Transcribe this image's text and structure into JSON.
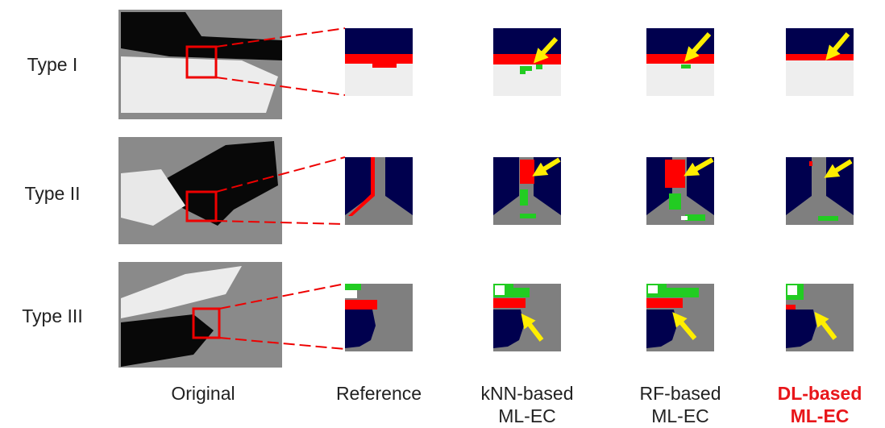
{
  "rows": [
    {
      "label": "Type I"
    },
    {
      "label": "Type II"
    },
    {
      "label": "Type III"
    }
  ],
  "columns": [
    {
      "lines": [
        "Original"
      ]
    },
    {
      "lines": [
        "Reference"
      ]
    },
    {
      "lines": [
        "kNN-based",
        "ML-EC"
      ]
    },
    {
      "lines": [
        "RF-based",
        "ML-EC"
      ]
    },
    {
      "lines": [
        "DL-based",
        "ML-EC"
      ]
    }
  ]
}
